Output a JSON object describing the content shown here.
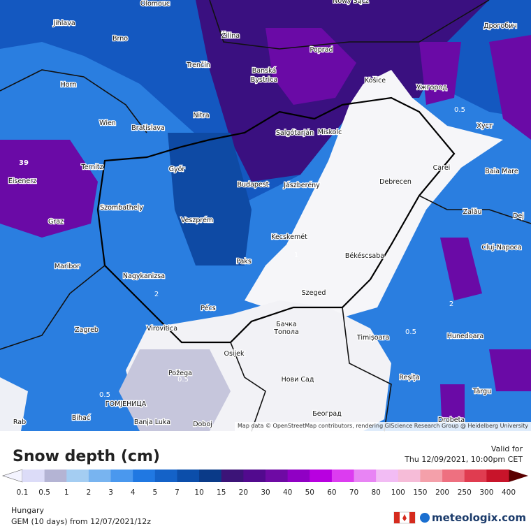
{
  "map": {
    "cities": [
      "Olomouc",
      "Nowy Sącz",
      "Jihlava",
      "Brno",
      "Žilina",
      "Poprad",
      "Дрогобич",
      "Trenčín",
      "Banská",
      "Bystrica",
      "Košice",
      "Ужгород",
      "Horn",
      "Nitra",
      "Wien",
      "Bratislava",
      "Salgótarján",
      "Miskolc",
      "Хуст",
      "Ternitz",
      "Carei",
      "Baia Mare",
      "Eisenerz",
      "Győr",
      "Budapest",
      "Jászberény",
      "Debrecen",
      "Szombathely",
      "Zalău",
      "Graz",
      "Veszprém",
      "Kecskemét",
      "Cluj-Napoca",
      "Maribor",
      "Paks",
      "Békéscsaba",
      "Nagykanizsa",
      "Szeged",
      "Pécs",
      "Zagreb",
      "Virovitica",
      "Бачка",
      "Топола",
      "Timișoara",
      "Hunedoara",
      "Osijek",
      "Požega",
      "Нови Сад",
      "Reșița",
      "Târgu",
      "ГОМЈЕНИЦА",
      "Bihać",
      "Banja Luka",
      "Doboj",
      "Београд",
      "Drobeta",
      "Dej",
      "Rab"
    ],
    "contour_labels": [
      "39",
      "0.5",
      "0.5",
      "2",
      "1",
      "0.5",
      "2",
      "0.5"
    ],
    "attribution": "Map data © OpenStreetMap contributors, rendering GIScience Research Group @ Heidelberg University"
  },
  "legend": {
    "title": "Snow depth (cm)",
    "valid_label": "Valid for",
    "valid_time": "Thu 12/09/2021, 10:00pm CET",
    "ticks": [
      0.1,
      0.5,
      1,
      2,
      3,
      4,
      5,
      7,
      10,
      15,
      20,
      30,
      40,
      50,
      60,
      70,
      80,
      100,
      150,
      200,
      250,
      300,
      400
    ],
    "colors": [
      "#dcdcf8",
      "#b4b4d4",
      "#a4cdf2",
      "#78b4f0",
      "#4a98ee",
      "#2078e2",
      "#1462c8",
      "#0c4eaa",
      "#0a3a88",
      "#3c1478",
      "#520a8e",
      "#6e0aa4",
      "#9000c4",
      "#b800e0",
      "#dc3cf0",
      "#e884f4",
      "#f2bcf4",
      "#f6bcd8",
      "#f4a0aa",
      "#ee7080",
      "#e03c50",
      "#c8142a"
    ],
    "low_color": "#f4f4ff",
    "high_color": "#5a0000"
  },
  "footer": {
    "region": "Hungary",
    "model": "GEM (10 days) from 12/07/2021/12z",
    "brand": "meteologix.com"
  }
}
